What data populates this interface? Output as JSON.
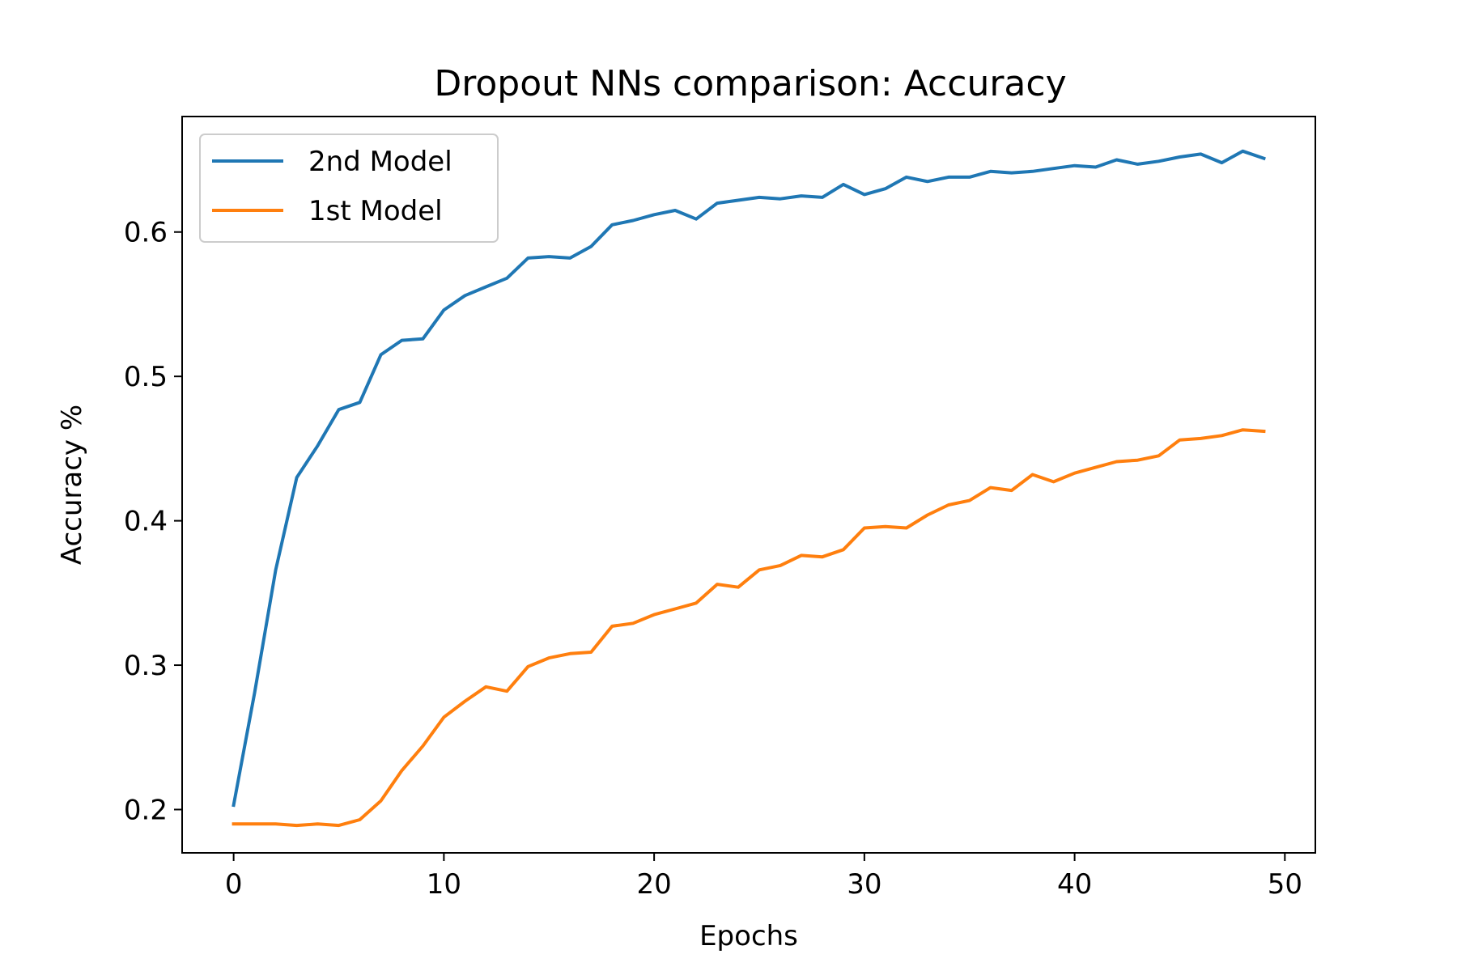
{
  "chart_data": {
    "type": "line",
    "title": "Dropout NNs comparison: Accuracy",
    "xlabel": "Epochs",
    "ylabel": "Accuracy %",
    "xlim": [
      -2.45,
      51.45
    ],
    "ylim": [
      0.17,
      0.68
    ],
    "xticks": [
      0,
      10,
      20,
      30,
      40,
      50
    ],
    "yticks": [
      0.2,
      0.3,
      0.4,
      0.5,
      0.6
    ],
    "xtick_labels": [
      "0",
      "10",
      "20",
      "30",
      "40",
      "50"
    ],
    "ytick_labels": [
      "0.2",
      "0.3",
      "0.4",
      "0.5",
      "0.6"
    ],
    "grid": false,
    "legend_position": "top-left",
    "x": [
      0,
      1,
      2,
      3,
      4,
      5,
      6,
      7,
      8,
      9,
      10,
      11,
      12,
      13,
      14,
      15,
      16,
      17,
      18,
      19,
      20,
      21,
      22,
      23,
      24,
      25,
      26,
      27,
      28,
      29,
      30,
      31,
      32,
      33,
      34,
      35,
      36,
      37,
      38,
      39,
      40,
      41,
      42,
      43,
      44,
      45,
      46,
      47,
      48,
      49
    ],
    "series": [
      {
        "name": "2nd Model",
        "color": "#1f77b4",
        "values": [
          0.203,
          0.281,
          0.366,
          0.43,
          0.452,
          0.477,
          0.482,
          0.515,
          0.525,
          0.526,
          0.546,
          0.556,
          0.562,
          0.568,
          0.582,
          0.583,
          0.582,
          0.59,
          0.605,
          0.608,
          0.612,
          0.615,
          0.609,
          0.62,
          0.622,
          0.624,
          0.623,
          0.625,
          0.624,
          0.633,
          0.626,
          0.63,
          0.638,
          0.635,
          0.638,
          0.638,
          0.642,
          0.641,
          0.642,
          0.644,
          0.646,
          0.645,
          0.65,
          0.647,
          0.649,
          0.652,
          0.654,
          0.648,
          0.656,
          0.651
        ]
      },
      {
        "name": "1st Model",
        "color": "#ff7f0e",
        "values": [
          0.19,
          0.19,
          0.19,
          0.189,
          0.19,
          0.189,
          0.193,
          0.206,
          0.227,
          0.244,
          0.264,
          0.275,
          0.285,
          0.282,
          0.299,
          0.305,
          0.308,
          0.309,
          0.327,
          0.329,
          0.335,
          0.339,
          0.343,
          0.356,
          0.354,
          0.366,
          0.369,
          0.376,
          0.375,
          0.38,
          0.395,
          0.396,
          0.395,
          0.404,
          0.411,
          0.414,
          0.423,
          0.421,
          0.432,
          0.427,
          0.433,
          0.437,
          0.441,
          0.442,
          0.445,
          0.456,
          0.457,
          0.459,
          0.463,
          0.462
        ]
      }
    ]
  }
}
